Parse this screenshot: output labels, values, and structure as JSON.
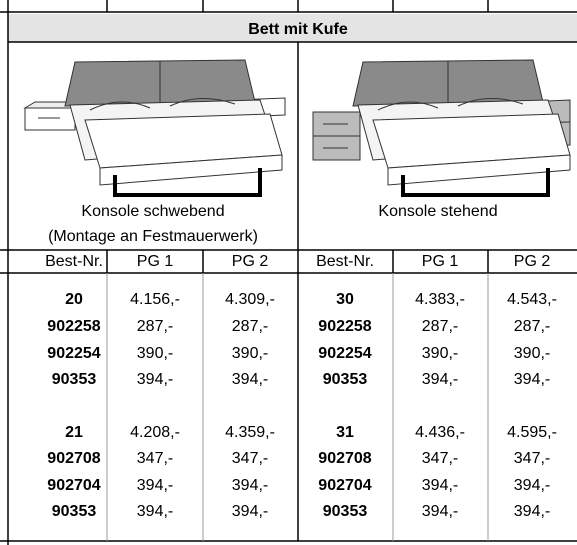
{
  "table": {
    "title": "Bett mit Kufe",
    "variants": [
      {
        "caption": [
          "Konsole schwebend",
          "(Montage an Festmauerwerk)"
        ]
      },
      {
        "caption": [
          "Konsole stehend"
        ]
      }
    ],
    "columns": [
      "Best-Nr.",
      "PG 1",
      "PG 2",
      "Best-Nr.",
      "PG 1",
      "PG 2"
    ],
    "rows": [
      [
        "20",
        "4.156,-",
        "4.309,-",
        "30",
        "4.383,-",
        "4.543,-"
      ],
      [
        "902258",
        "287,-",
        "287,-",
        "902258",
        "287,-",
        "287,-"
      ],
      [
        "902254",
        "390,-",
        "390,-",
        "902254",
        "390,-",
        "390,-"
      ],
      [
        "90353",
        "394,-",
        "394,-",
        "90353",
        "394,-",
        "394,-"
      ],
      [
        "21",
        "4.208,-",
        "4.359,-",
        "31",
        "4.436,-",
        "4.595,-"
      ],
      [
        "902708",
        "347,-",
        "347,-",
        "902708",
        "347,-",
        "347,-"
      ],
      [
        "902704",
        "394,-",
        "394,-",
        "902704",
        "394,-",
        "394,-"
      ],
      [
        "90353",
        "394,-",
        "394,-",
        "90353",
        "394,-",
        "394,-"
      ]
    ]
  }
}
